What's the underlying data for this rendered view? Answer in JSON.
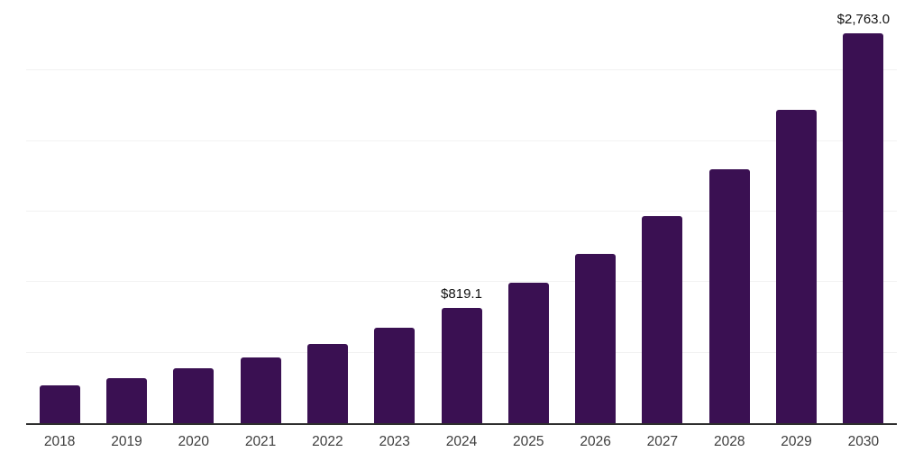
{
  "chart_data": {
    "type": "bar",
    "title": "",
    "xlabel": "",
    "ylabel": "",
    "categories": [
      "2018",
      "2019",
      "2020",
      "2021",
      "2022",
      "2023",
      "2024",
      "2025",
      "2026",
      "2027",
      "2028",
      "2029",
      "2030"
    ],
    "values": [
      268,
      319,
      387,
      468,
      562,
      677,
      819.1,
      997,
      1202,
      1469,
      1802,
      2222,
      2763
    ],
    "data_labels": {
      "2024": "$819.1",
      "2030": "$2,763.0"
    },
    "ylim": [
      0,
      3000
    ],
    "gridline_interval": 500,
    "grid": "horizontal-only",
    "legend": "none",
    "y_axis_tick_labels": "none",
    "bar_color": "#3A1052",
    "axis_line_color": "#2e2e2e",
    "gridline_color": "#f2f2f2",
    "x_label_color": "#3d3d3d",
    "value_label_color": "#111111"
  }
}
